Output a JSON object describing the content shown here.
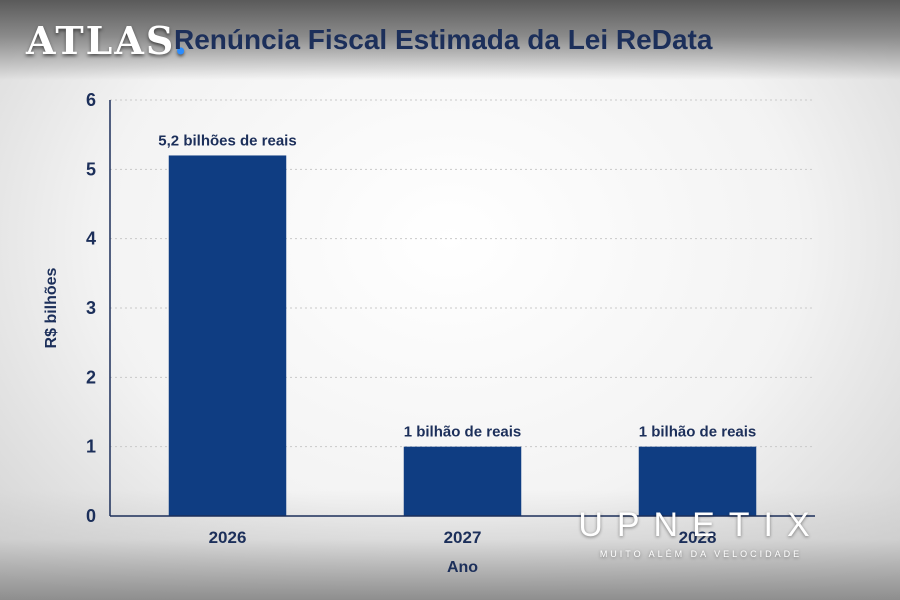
{
  "brand": {
    "name": "ATLAS",
    "dot": ".",
    "accent": "#2a8cff"
  },
  "watermark": {
    "main": "UPNETIX",
    "sub": "MUITO ALÉM DA VELOCIDADE"
  },
  "colors": {
    "bar": "#0f3d82",
    "text": "#1c2f5a",
    "grid": "#c9c9c9"
  },
  "chart_data": {
    "type": "bar",
    "title": "Renúncia Fiscal Estimada da Lei ReData",
    "xlabel": "Ano",
    "ylabel": "R$ bilhões",
    "categories": [
      "2026",
      "2027",
      "2028"
    ],
    "values": [
      5.2,
      1,
      1
    ],
    "data_labels": [
      "5,2 bilhões de reais",
      "1 bilhão de reais",
      "1 bilhão de reais"
    ],
    "ylim": [
      0,
      6
    ],
    "yticks": [
      0,
      1,
      2,
      3,
      4,
      5,
      6
    ],
    "grid": true,
    "legend": "none"
  }
}
